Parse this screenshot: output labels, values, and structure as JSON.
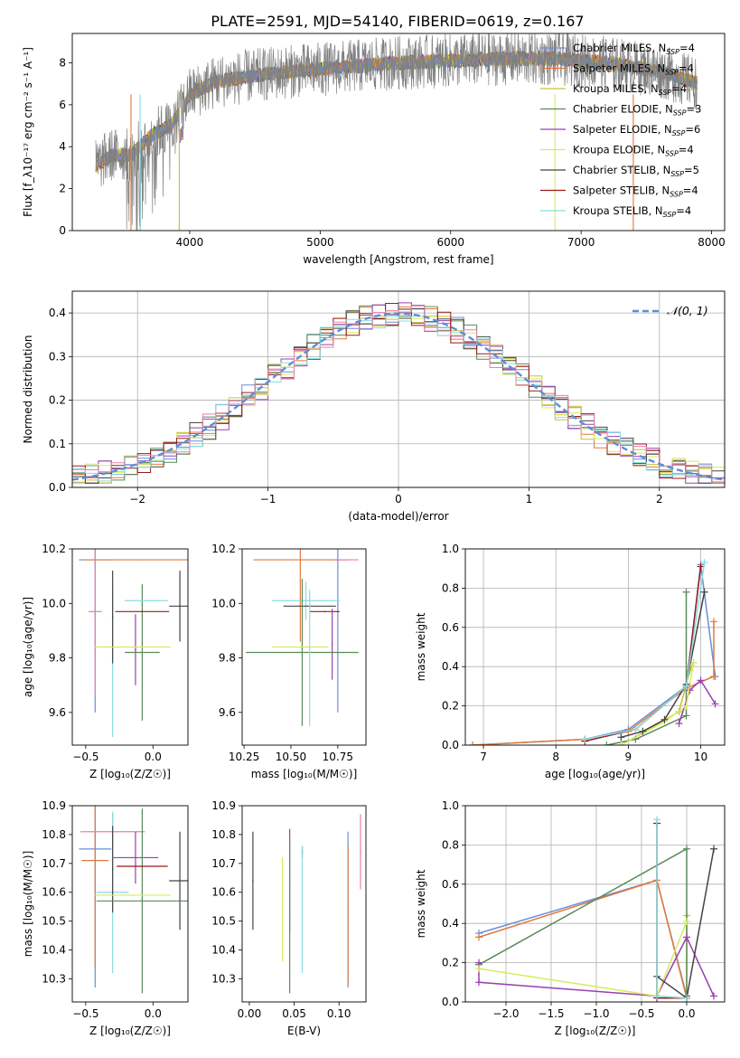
{
  "title": "PLATE=2591, MJD=54140, FIBERID=0619, z=0.167",
  "colors": {
    "chabrier_miles": "#6a8ed8",
    "salpeter_miles": "#e07a3a",
    "kroupa_miles": "#c8c03a",
    "chabrier_elodie": "#5a8a5a",
    "salpeter_elodie": "#9a3fb0",
    "kroupa_elodie": "#d8ea60",
    "chabrier_stelib": "#444444",
    "salpeter_stelib": "#9b1a1a",
    "kroupa_stelib": "#8adce0",
    "data": "#808080",
    "normal_curve": "#5b8fd6",
    "pink": "#e680a8"
  },
  "chart_data": [
    {
      "id": "spectrum",
      "type": "line",
      "xlabel": "wavelength [Angstrom, rest frame]",
      "ylabel": "Flux [f_λ10⁻¹⁷ erg cm⁻² s⁻¹ A⁻¹]",
      "xlim": [
        3100,
        8100
      ],
      "ylim": [
        0,
        9.4
      ],
      "xticks": [
        "4000",
        "5000",
        "6000",
        "7000",
        "8000"
      ],
      "yticks": [
        "0",
        "2",
        "4",
        "6",
        "8"
      ],
      "grid": false,
      "legend_position": "right",
      "legend": [
        "Chabrier MILES, N_SSP=4",
        "Salpeter MILES, N_SSP=4",
        "Kroupa MILES, N_SSP=4",
        "Chabrier ELODIE, N_SSP=3",
        "Salpeter ELODIE, N_SSP=6",
        "Kroupa ELODIE, N_SSP=4",
        "Chabrier STELIB, N_SSP=5",
        "Salpeter STELIB, N_SSP=4",
        "Kroupa STELIB, N_SSP=4"
      ],
      "continuum_knots": {
        "x": [
          3280,
          3400,
          3550,
          3700,
          3850,
          3950,
          4000,
          4200,
          4500,
          4800,
          5200,
          5600,
          6000,
          6400,
          6800,
          7200,
          7600,
          7900
        ],
        "y": [
          3.1,
          3.6,
          3.6,
          4.5,
          5.0,
          5.9,
          6.5,
          7.1,
          7.4,
          7.6,
          7.8,
          8.0,
          8.1,
          8.2,
          8.2,
          8.0,
          7.6,
          7.0
        ]
      }
    },
    {
      "id": "residuals",
      "type": "bar",
      "xlabel": "(data-model)/error",
      "ylabel": "Normed distribution",
      "xlim": [
        -2.5,
        2.5
      ],
      "ylim": [
        0,
        0.45
      ],
      "xticks": [
        "−2",
        "−1",
        "0",
        "1",
        "2"
      ],
      "yticks": [
        "0.0",
        "0.1",
        "0.2",
        "0.3",
        "0.4"
      ],
      "grid": true,
      "legend": [
        "𝒩(0, 1)"
      ],
      "legend_position": "top-right",
      "bin_width": 0.1
    },
    {
      "id": "age_vs_Z",
      "type": "scatter",
      "xlabel": "Z [log₁₀(Z/Z☉)]",
      "ylabel": "age  [log₁₀(age/yr)]",
      "xlim": [
        -0.6,
        0.26
      ],
      "ylim": [
        9.48,
        10.2
      ],
      "xticks": [
        "−0.5",
        "0.0"
      ],
      "yticks": [
        "9.6",
        "9.8",
        "10.0",
        "10.2"
      ],
      "grid": false,
      "points": [
        {
          "series": "chabrier_miles",
          "x": -0.43,
          "y": 10.16,
          "xerr": 0.12,
          "yerr": 0.56
        },
        {
          "series": "salpeter_miles",
          "x": -0.1,
          "y": 10.16,
          "xerr": 0.42,
          "yerr": 0.0
        },
        {
          "series": "pink",
          "x": -0.43,
          "y": 9.97,
          "xerr": 0.05,
          "yerr": 0.31
        },
        {
          "series": "kroupa_stelib",
          "x": -0.3,
          "y": 9.78,
          "xerr": 0.0,
          "yerr": 0.27
        },
        {
          "series": "chabrier_stelib",
          "x": -0.3,
          "y": 9.95,
          "xerr": 0.0,
          "yerr": 0.17
        },
        {
          "series": "salpeter_elodie",
          "x": -0.13,
          "y": 9.83,
          "xerr": 0.0,
          "yerr": 0.13
        },
        {
          "series": "chabrier_elodie",
          "x": -0.08,
          "y": 9.82,
          "xerr": 0.13,
          "yerr": 0.25
        },
        {
          "series": "kroupa_elodie",
          "x": -0.15,
          "y": 9.84,
          "xerr": 0.28,
          "yerr": 0.0
        },
        {
          "series": "kroupa_stelib",
          "x": -0.05,
          "y": 10.01,
          "xerr": 0.16,
          "yerr": 0.0
        },
        {
          "series": "salpeter_stelib",
          "x": -0.08,
          "y": 9.97,
          "xerr": 0.2,
          "yerr": 0.0
        },
        {
          "series": "chabrier_stelib",
          "x": 0.2,
          "y": 9.99,
          "xerr": 0.08,
          "yerr": 0.13
        }
      ]
    },
    {
      "id": "age_vs_mass",
      "type": "scatter",
      "xlabel": "mass [log₁₀(M/M☉)]",
      "ylabel": "",
      "xlim": [
        10.24,
        10.9
      ],
      "ylim": [
        9.48,
        10.2
      ],
      "xticks": [
        "10.25",
        "10.50",
        "10.75"
      ],
      "yticks": [
        "9.6",
        "9.8",
        "10.0",
        "10.2"
      ],
      "grid": false,
      "points": [
        {
          "series": "chabrier_miles",
          "x": 10.75,
          "y": 10.16,
          "xerr": 0.02,
          "yerr": 0.56
        },
        {
          "series": "salpeter_miles",
          "x": 10.55,
          "y": 10.16,
          "xerr": 0.25,
          "yerr": 0.3
        },
        {
          "series": "pink",
          "x": 10.8,
          "y": 10.16,
          "xerr": 0.06,
          "yerr": 0.0
        },
        {
          "series": "kroupa_stelib",
          "x": 10.58,
          "y": 10.01,
          "xerr": 0.18,
          "yerr": 0.07
        },
        {
          "series": "chabrier_stelib",
          "x": 10.6,
          "y": 9.99,
          "xerr": 0.14,
          "yerr": 0.0
        },
        {
          "series": "salpeter_stelib",
          "x": 10.68,
          "y": 9.97,
          "xerr": 0.08,
          "yerr": 0.0
        },
        {
          "series": "salpeter_elodie",
          "x": 10.72,
          "y": 9.85,
          "xerr": 0.0,
          "yerr": 0.13
        },
        {
          "series": "chabrier_elodie",
          "x": 10.56,
          "y": 9.82,
          "xerr": 0.3,
          "yerr": 0.27
        },
        {
          "series": "kroupa_elodie",
          "x": 10.55,
          "y": 9.84,
          "xerr": 0.15,
          "yerr": 0.0
        },
        {
          "series": "kroupa_stelib",
          "x": 10.6,
          "y": 9.8,
          "xerr": 0.0,
          "yerr": 0.25
        }
      ]
    },
    {
      "id": "weight_vs_age",
      "type": "line",
      "xlabel": "age  [log₁₀(age/yr)]",
      "ylabel": "mass weight",
      "xlim": [
        6.75,
        10.33
      ],
      "ylim": [
        0,
        1.0
      ],
      "xticks": [
        "7",
        "8",
        "9",
        "10"
      ],
      "yticks": [
        "0.0",
        "0.2",
        "0.4",
        "0.6",
        "0.8",
        "1.0"
      ],
      "grid": true,
      "series": [
        {
          "key": "chabrier_miles",
          "x": [
            6.85,
            8.4,
            9.0,
            9.8,
            10.0,
            10.2
          ],
          "y": [
            0.0,
            0.03,
            0.08,
            0.3,
            0.92,
            0.35
          ]
        },
        {
          "key": "salpeter_miles",
          "x": [
            6.85,
            8.4,
            9.0,
            9.8,
            10.18,
            10.18
          ],
          "y": [
            0.0,
            0.03,
            0.07,
            0.29,
            0.35,
            0.63
          ]
        },
        {
          "key": "kroupa_miles",
          "x": [
            8.9,
            9.7,
            9.85,
            9.9
          ],
          "y": [
            0.0,
            0.17,
            0.38,
            0.42
          ]
        },
        {
          "key": "chabrier_elodie",
          "x": [
            8.7,
            9.1,
            9.8,
            9.8
          ],
          "y": [
            0.0,
            0.03,
            0.15,
            0.78
          ]
        },
        {
          "key": "salpeter_elodie",
          "x": [
            9.7,
            9.85,
            10.0,
            10.2
          ],
          "y": [
            0.11,
            0.28,
            0.33,
            0.21
          ]
        },
        {
          "key": "kroupa_elodie",
          "x": [
            8.9,
            9.5,
            9.8,
            9.9
          ],
          "y": [
            0.0,
            0.12,
            0.2,
            0.42
          ]
        },
        {
          "key": "chabrier_stelib",
          "x": [
            8.9,
            9.2,
            9.5,
            9.8,
            10.05
          ],
          "y": [
            0.04,
            0.07,
            0.13,
            0.31,
            0.78
          ]
        },
        {
          "key": "salpeter_stelib",
          "x": [
            8.4,
            9.1,
            9.8,
            10.0
          ],
          "y": [
            0.02,
            0.08,
            0.3,
            0.91
          ]
        },
        {
          "key": "kroupa_stelib",
          "x": [
            8.4,
            9.1,
            9.8,
            10.05
          ],
          "y": [
            0.03,
            0.08,
            0.3,
            0.93
          ]
        }
      ]
    },
    {
      "id": "mass_vs_Z",
      "type": "scatter",
      "xlabel": "Z [log₁₀(Z/Z☉)]",
      "ylabel": "mass [log₁₀(M/M☉)]",
      "xlim": [
        -0.6,
        0.26
      ],
      "ylim": [
        10.22,
        10.9
      ],
      "xticks": [
        "−0.5",
        "0.0"
      ],
      "yticks": [
        "10.3",
        "10.4",
        "10.5",
        "10.6",
        "10.7",
        "10.8",
        "10.9"
      ],
      "grid": false,
      "points": [
        {
          "series": "chabrier_miles",
          "x": -0.43,
          "y": 10.75,
          "xerr": 0.12,
          "yerr": 0.48
        },
        {
          "series": "salpeter_miles",
          "x": -0.43,
          "y": 10.71,
          "xerr": 0.1,
          "yerr": 0.37
        },
        {
          "series": "pink",
          "x": -0.3,
          "y": 10.81,
          "xerr": 0.24,
          "yerr": 0.06
        },
        {
          "series": "kroupa_stelib",
          "x": -0.3,
          "y": 10.6,
          "xerr": 0.12,
          "yerr": 0.28
        },
        {
          "series": "chabrier_stelib",
          "x": -0.3,
          "y": 10.68,
          "xerr": 0.0,
          "yerr": 0.15
        },
        {
          "series": "salpeter_elodie",
          "x": -0.13,
          "y": 10.72,
          "xerr": 0.17,
          "yerr": 0.09
        },
        {
          "series": "chabrier_elodie",
          "x": -0.08,
          "y": 10.57,
          "xerr": 0.34,
          "yerr": 0.32
        },
        {
          "series": "kroupa_elodie",
          "x": -0.15,
          "y": 10.59,
          "xerr": 0.28,
          "yerr": 0.0
        },
        {
          "series": "salpeter_stelib",
          "x": -0.08,
          "y": 10.69,
          "xerr": 0.19,
          "yerr": 0.0
        },
        {
          "series": "chabrier_stelib",
          "x": 0.2,
          "y": 10.64,
          "xerr": 0.08,
          "yerr": 0.17
        }
      ]
    },
    {
      "id": "mass_vs_EBV",
      "type": "scatter",
      "xlabel": "E(B-V)",
      "ylabel": "",
      "xlim": [
        -0.008,
        0.13
      ],
      "ylim": [
        10.22,
        10.9
      ],
      "xticks": [
        "0.00",
        "0.05",
        "0.10"
      ],
      "yticks": [
        "10.3",
        "10.4",
        "10.5",
        "10.6",
        "10.7",
        "10.8",
        "10.9"
      ],
      "grid": false,
      "points": [
        {
          "series": "chabrier_stelib",
          "x": 0.004,
          "y": 10.64,
          "xerr": 0.0,
          "yerr": 0.17
        },
        {
          "series": "kroupa_elodie",
          "x": 0.037,
          "y": 10.54,
          "xerr": 0.0,
          "yerr": 0.18
        },
        {
          "series": "salpeter_elodie",
          "x": 0.045,
          "y": 10.64,
          "xerr": 0.0,
          "yerr": 0.18
        },
        {
          "series": "chabrier_elodie",
          "x": 0.045,
          "y": 10.52,
          "xerr": 0.0,
          "yerr": 0.27
        },
        {
          "series": "salpeter_stelib",
          "x": 0.059,
          "y": 10.74,
          "xerr": 0.0,
          "yerr": 0.02
        },
        {
          "series": "kroupa_stelib",
          "x": 0.059,
          "y": 10.54,
          "xerr": 0.0,
          "yerr": 0.22
        },
        {
          "series": "chabrier_miles",
          "x": 0.11,
          "y": 10.54,
          "xerr": 0.0,
          "yerr": 0.27
        },
        {
          "series": "salpeter_miles",
          "x": 0.11,
          "y": 10.52,
          "xerr": 0.0,
          "yerr": 0.24
        },
        {
          "series": "pink",
          "x": 0.124,
          "y": 10.74,
          "xerr": 0.0,
          "yerr": 0.13
        }
      ]
    },
    {
      "id": "weight_vs_Z",
      "type": "line",
      "xlabel": "Z [log₁₀(Z/Z☉)]",
      "ylabel": "mass weight",
      "xlim": [
        -2.45,
        0.42
      ],
      "ylim": [
        0,
        1.0
      ],
      "xticks": [
        "−2.0",
        "−1.5",
        "−1.0",
        "−0.5",
        "0.0"
      ],
      "yticks": [
        "0.0",
        "0.2",
        "0.4",
        "0.6",
        "0.8",
        "1.0"
      ],
      "grid": true,
      "series": [
        {
          "key": "chabrier_miles",
          "x": [
            -2.3,
            -0.33,
            0.0
          ],
          "y": [
            0.35,
            0.62,
            0.03
          ]
        },
        {
          "key": "salpeter_miles",
          "x": [
            -2.3,
            -0.33,
            0.0
          ],
          "y": [
            0.33,
            0.62,
            0.02
          ]
        },
        {
          "key": "kroupa_miles",
          "x": [
            -0.33,
            0.0,
            0.0
          ],
          "y": [
            0.03,
            0.02,
            0.44
          ]
        },
        {
          "key": "chabrier_elodie",
          "x": [
            -2.3,
            0.0,
            0.0
          ],
          "y": [
            0.19,
            0.78,
            0.03
          ]
        },
        {
          "key": "salpeter_elodie",
          "x": [
            -2.3,
            -2.3,
            -0.33,
            0.0,
            0.3
          ],
          "y": [
            0.2,
            0.1,
            0.03,
            0.33,
            0.03
          ]
        },
        {
          "key": "kroupa_elodie",
          "x": [
            -2.3,
            -0.33,
            0.0
          ],
          "y": [
            0.17,
            0.03,
            0.41
          ]
        },
        {
          "key": "chabrier_stelib",
          "x": [
            -0.33,
            0.0,
            0.3
          ],
          "y": [
            0.13,
            0.02,
            0.78
          ]
        },
        {
          "key": "salpeter_stelib",
          "x": [
            -0.33,
            -0.33,
            0.0
          ],
          "y": [
            0.91,
            0.02,
            0.02
          ]
        },
        {
          "key": "kroupa_stelib",
          "x": [
            -0.33,
            -0.33,
            0.0
          ],
          "y": [
            0.93,
            0.03,
            0.02
          ]
        }
      ]
    }
  ]
}
